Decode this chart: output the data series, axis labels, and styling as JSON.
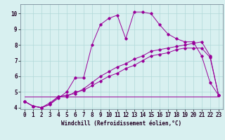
{
  "x": [
    0,
    1,
    2,
    3,
    4,
    5,
    6,
    7,
    8,
    9,
    10,
    11,
    12,
    13,
    14,
    15,
    16,
    17,
    18,
    19,
    20,
    21,
    22,
    23
  ],
  "line1": [
    4.4,
    4.1,
    4.0,
    4.2,
    4.6,
    5.0,
    5.9,
    5.9,
    8.0,
    9.3,
    9.7,
    9.9,
    8.4,
    10.1,
    10.1,
    10.0,
    9.3,
    8.7,
    8.4,
    8.2,
    8.2,
    7.3,
    5.6,
    4.8
  ],
  "line2": [
    4.4,
    4.1,
    4.0,
    4.3,
    4.7,
    4.8,
    4.9,
    5.2,
    5.6,
    6.0,
    6.3,
    6.6,
    6.8,
    7.1,
    7.3,
    7.6,
    7.7,
    7.8,
    7.9,
    8.0,
    8.1,
    8.2,
    7.3,
    4.8
  ],
  "line3": [
    4.4,
    4.1,
    4.0,
    4.2,
    4.7,
    4.7,
    5.0,
    5.1,
    5.4,
    5.7,
    6.0,
    6.2,
    6.5,
    6.7,
    7.0,
    7.3,
    7.4,
    7.5,
    7.7,
    7.8,
    7.8,
    7.8,
    7.2,
    4.8
  ],
  "line4": [
    4.7,
    4.7,
    4.7,
    4.7,
    4.7,
    4.7,
    4.7,
    4.7,
    4.7,
    4.7,
    4.7,
    4.7,
    4.7,
    4.7,
    4.7,
    4.7,
    4.7,
    4.7,
    4.7,
    4.7,
    4.7,
    4.7,
    4.7,
    4.7
  ],
  "color": "#990099",
  "bg_color": "#d8f0f0",
  "grid_color": "#b0d8d8",
  "xlabel": "Windchill (Refroidissement éolien,°C)",
  "ylim": [
    3.9,
    10.6
  ],
  "xlim": [
    -0.5,
    23.5
  ],
  "yticks": [
    4,
    5,
    6,
    7,
    8,
    9,
    10
  ],
  "xticks": [
    0,
    1,
    2,
    3,
    4,
    5,
    6,
    7,
    8,
    9,
    10,
    11,
    12,
    13,
    14,
    15,
    16,
    17,
    18,
    19,
    20,
    21,
    22,
    23
  ],
  "xlabel_fontsize": 5.5,
  "tick_fontsize": 5.5
}
